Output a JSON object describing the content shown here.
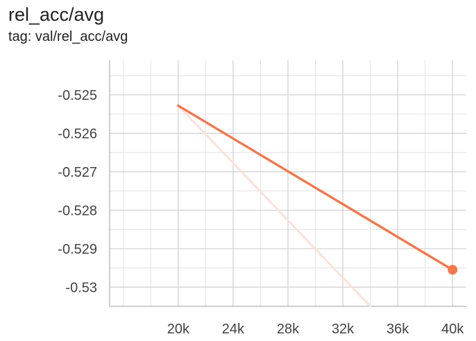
{
  "card": {
    "title": "rel_acc/avg",
    "subtitle": "tag: val/rel_acc/avg"
  },
  "chart_data": {
    "type": "line",
    "xlim": [
      15000,
      41000
    ],
    "ylim": [
      -0.5305,
      -0.5241
    ],
    "x_ticks": [
      20000,
      24000,
      28000,
      32000,
      36000,
      40000
    ],
    "x_tick_labels": [
      "20k",
      "24k",
      "28k",
      "32k",
      "36k",
      "40k"
    ],
    "y_ticks": [
      -0.525,
      -0.526,
      -0.527,
      -0.528,
      -0.529,
      -0.53
    ],
    "y_tick_labels": [
      "-0.525",
      "-0.526",
      "-0.527",
      "-0.528",
      "-0.529",
      "-0.53"
    ],
    "grid": true,
    "series": [
      {
        "role": "smoothed",
        "color": "#f4764a",
        "x": [
          20000,
          40000
        ],
        "y": [
          -0.52528,
          -0.52955
        ]
      },
      {
        "role": "raw",
        "color": "#fde1d8",
        "x": [
          20000,
          34000
        ],
        "y": [
          -0.52528,
          -0.5305
        ]
      }
    ],
    "marker": {
      "x": 40000,
      "y": -0.52955,
      "color": "#f4764a"
    }
  }
}
